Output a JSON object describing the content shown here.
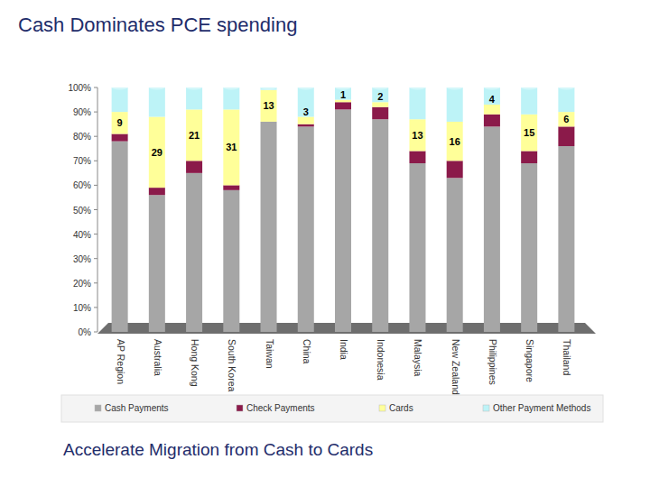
{
  "chart_data": {
    "type": "bar",
    "stacked": true,
    "title": "Cash Dominates PCE spending",
    "annotation": "Accelerate Migration from Cash to Cards",
    "categories": [
      "AP Region",
      "Australia",
      "Hong Kong",
      "South Korea",
      "Taiwan",
      "China",
      "India",
      "Indonesia",
      "Malaysia",
      "New Zealand",
      "Philippines",
      "Singapore",
      "Thailand"
    ],
    "series": [
      {
        "name": "Cash Payments",
        "color": "#a6a6a6",
        "values": [
          78,
          56,
          65,
          58,
          86,
          84,
          91,
          87,
          69,
          63,
          84,
          69,
          76
        ]
      },
      {
        "name": "Check Payments",
        "color": "#8b1a4a",
        "values": [
          3,
          3,
          5,
          2,
          0,
          1,
          3,
          5,
          5,
          7,
          5,
          5,
          8
        ]
      },
      {
        "name": "Cards",
        "color": "#ffff99",
        "data_labels": true,
        "values": [
          9,
          29,
          21,
          31,
          13,
          3,
          1,
          2,
          13,
          16,
          4,
          15,
          6
        ]
      },
      {
        "name": "Other Payment Methods",
        "color": "#bdf3f7",
        "values": [
          10,
          12,
          9,
          9,
          1,
          12,
          5,
          6,
          13,
          14,
          7,
          11,
          10
        ]
      }
    ],
    "ylim": [
      0,
      100
    ],
    "yticks": [
      {
        "value": 0,
        "label": "0%"
      },
      {
        "value": 10,
        "label": "10%"
      },
      {
        "value": 20,
        "label": "20%"
      },
      {
        "value": 30,
        "label": "30%"
      },
      {
        "value": 40,
        "label": "40%"
      },
      {
        "value": 50,
        "label": "50%"
      },
      {
        "value": 60,
        "label": "60%"
      },
      {
        "value": 70,
        "label": "70%"
      },
      {
        "value": 80,
        "label": "80%"
      },
      {
        "value": 90,
        "label": "90%"
      },
      {
        "value": 100,
        "label": "100%"
      }
    ],
    "grid": false,
    "legend": "bottom"
  }
}
